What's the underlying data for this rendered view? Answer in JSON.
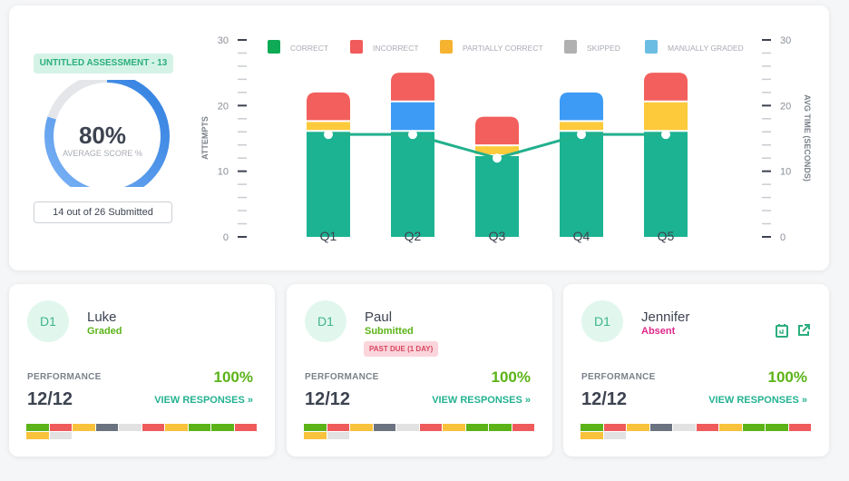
{
  "summary": {
    "assessment_title": "UNTITLED ASSESSMENT - 13",
    "average_score": "80%",
    "average_score_value": 80,
    "average_score_label": "AVERAGE SCORE %",
    "submitted": "14 out of 26 Submitted"
  },
  "chart_data": {
    "type": "bar",
    "categories": [
      "Q1",
      "Q2",
      "Q3",
      "Q4",
      "Q5"
    ],
    "legend": [
      {
        "name": "CORRECT",
        "color": "#0eaa55"
      },
      {
        "name": "INCORRECT",
        "color": "#f15b5b"
      },
      {
        "name": "PARTIALLY CORRECT",
        "color": "#f5b330"
      },
      {
        "name": "SKIPPED",
        "color": "#b0b0b0"
      },
      {
        "name": "MANUALLY GRADED",
        "color": "#6cbde3"
      }
    ],
    "series": [
      {
        "name": "Correct",
        "color": "#1cb393",
        "values": [
          16,
          16,
          12.3,
          16,
          16
        ]
      },
      {
        "name": "Partially Correct",
        "color": "#fdca3c",
        "values": [
          1.5,
          0,
          1.5,
          1.5,
          4.5
        ]
      },
      {
        "name": "Manually Graded",
        "color": "#3d9bf5",
        "values": [
          0,
          4.5,
          0,
          4.5,
          0
        ]
      },
      {
        "name": "Incorrect",
        "color": "#f25f5c",
        "values": [
          4.5,
          4.5,
          4.5,
          0,
          4.5
        ]
      }
    ],
    "line": {
      "name": "Avg Time",
      "color": "#22b08d",
      "values": [
        15.6,
        15.6,
        12,
        15.6,
        15.6
      ]
    },
    "ylabel": "ATTEMPTS",
    "y2label": "AVG TIME (SECONDS)",
    "ylim": [
      0,
      30
    ],
    "yticks": [
      "0",
      "10",
      "20",
      "30"
    ]
  },
  "students": [
    {
      "initials": "D1",
      "name": "Luke",
      "status": "Graded",
      "status_color": "#5bb318",
      "performance_label": "PERFORMANCE",
      "score": "12/12",
      "percent": "100%",
      "view": "VIEW RESPONSES »",
      "strip": [
        "g",
        "r",
        "y",
        "d",
        "l",
        "r",
        "y",
        "g",
        "g",
        "r",
        "y",
        "l"
      ]
    },
    {
      "initials": "D1",
      "name": "Paul",
      "status": "Submitted",
      "status_color": "#5bb318",
      "badge": "PAST DUE (1 DAY)",
      "performance_label": "PERFORMANCE",
      "score": "12/12",
      "percent": "100%",
      "view": "VIEW RESPONSES »",
      "strip": [
        "g",
        "r",
        "y",
        "d",
        "l",
        "r",
        "y",
        "g",
        "g",
        "r",
        "y",
        "l"
      ]
    },
    {
      "initials": "D1",
      "name": "Jennifer",
      "status": "Absent",
      "status_color": "#e0288a",
      "performance_label": "PERFORMANCE",
      "score": "12/12",
      "percent": "100%",
      "view": "VIEW RESPONSES »",
      "strip": [
        "g",
        "r",
        "y",
        "d",
        "l",
        "r",
        "y",
        "g",
        "g",
        "r",
        "y",
        "l"
      ]
    }
  ],
  "strip_colors": {
    "g": "#5bb318",
    "r": "#ef5b5b",
    "y": "#f9c23c",
    "d": "#6b7280",
    "l": "#e2e2e2"
  }
}
